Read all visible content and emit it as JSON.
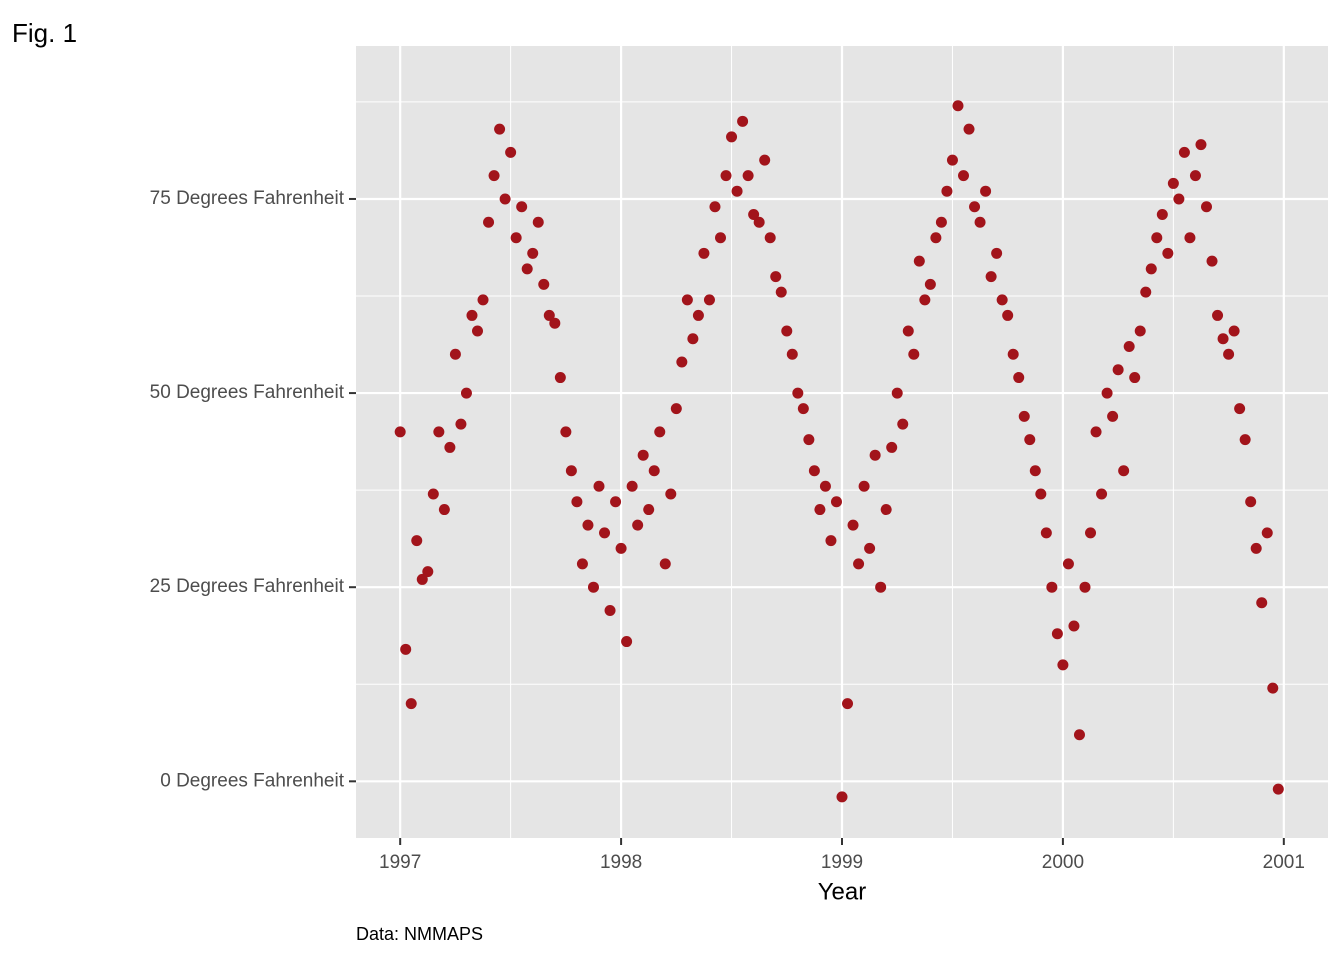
{
  "chart_data": {
    "type": "scatter",
    "tag": "Fig. 1",
    "xlabel": "Year",
    "caption": "Data: NMMAPS",
    "color": "#a2141b",
    "grid": true,
    "panel_color": "#e5e5e5",
    "xlim": [
      1996.8,
      2001.2
    ],
    "ylim": [
      -7.3,
      94.7
    ],
    "xticks": [
      1997,
      1998,
      1999,
      2000,
      2001
    ],
    "yticks": [
      {
        "value": 0,
        "label": "0 Degrees Fahrenheit"
      },
      {
        "value": 25,
        "label": "25 Degrees Fahrenheit"
      },
      {
        "value": 50,
        "label": "50 Degrees Fahrenheit"
      },
      {
        "value": 75,
        "label": "75 Degrees Fahrenheit"
      }
    ],
    "minor_xticks": [
      1997.5,
      1998.5,
      1999.5,
      2000.5
    ],
    "minor_yticks": [
      12.5,
      37.5,
      62.5,
      87.5
    ],
    "x": [
      1997,
      1997.025,
      1997.05,
      1997.075,
      1997.1,
      1997.125,
      1997.15,
      1997.175,
      1997.2,
      1997.225,
      1997.25,
      1997.275,
      1997.3,
      1997.325,
      1997.35,
      1997.375,
      1997.4,
      1997.425,
      1997.45,
      1997.475,
      1997.5,
      1997.525,
      1997.55,
      1997.575,
      1997.6,
      1997.625,
      1997.65,
      1997.675,
      1997.7,
      1997.725,
      1997.75,
      1997.775,
      1997.8,
      1997.825,
      1997.85,
      1997.875,
      1997.9,
      1997.925,
      1997.95,
      1997.975,
      1998,
      1998.025,
      1998.05,
      1998.075,
      1998.1,
      1998.125,
      1998.15,
      1998.175,
      1998.2,
      1998.225,
      1998.25,
      1998.275,
      1998.3,
      1998.325,
      1998.35,
      1998.375,
      1998.4,
      1998.425,
      1998.45,
      1998.475,
      1998.5,
      1998.525,
      1998.55,
      1998.575,
      1998.6,
      1998.625,
      1998.65,
      1998.675,
      1998.7,
      1998.725,
      1998.75,
      1998.775,
      1998.8,
      1998.825,
      1998.85,
      1998.875,
      1998.9,
      1998.925,
      1998.95,
      1998.975,
      1999,
      1999.025,
      1999.05,
      1999.075,
      1999.1,
      1999.125,
      1999.15,
      1999.175,
      1999.2,
      1999.225,
      1999.25,
      1999.275,
      1999.3,
      1999.325,
      1999.35,
      1999.375,
      1999.4,
      1999.425,
      1999.45,
      1999.475,
      1999.5,
      1999.525,
      1999.55,
      1999.575,
      1999.6,
      1999.625,
      1999.65,
      1999.675,
      1999.7,
      1999.725,
      1999.75,
      1999.775,
      1999.8,
      1999.825,
      1999.85,
      1999.875,
      1999.9,
      1999.925,
      1999.95,
      1999.975,
      2000,
      2000.025,
      2000.05,
      2000.075,
      2000.1,
      2000.125,
      2000.15,
      2000.175,
      2000.2,
      2000.225,
      2000.25,
      2000.275,
      2000.3,
      2000.325,
      2000.35,
      2000.375,
      2000.4,
      2000.425,
      2000.45,
      2000.475,
      2000.5,
      2000.525,
      2000.55,
      2000.575,
      2000.6,
      2000.625,
      2000.65,
      2000.675,
      2000.7,
      2000.725,
      2000.75,
      2000.775,
      2000.8,
      2000.825,
      2000.85,
      2000.875,
      2000.9,
      2000.925,
      2000.95,
      2000.975
    ],
    "values": [
      45,
      17,
      10,
      31,
      26,
      27,
      37,
      45,
      35,
      43,
      55,
      46,
      50,
      60,
      58,
      62,
      72,
      78,
      84,
      75,
      81,
      70,
      74,
      66,
      68,
      72,
      64,
      60,
      59,
      52,
      45,
      40,
      36,
      28,
      33,
      25,
      38,
      32,
      22,
      36,
      30,
      18,
      38,
      33,
      42,
      35,
      40,
      45,
      28,
      37,
      48,
      54,
      62,
      57,
      60,
      68,
      62,
      74,
      70,
      78,
      83,
      76,
      85,
      78,
      73,
      72,
      80,
      70,
      65,
      63,
      58,
      55,
      50,
      48,
      44,
      40,
      35,
      38,
      31,
      36,
      -2,
      10,
      33,
      28,
      38,
      30,
      42,
      25,
      35,
      43,
      50,
      46,
      58,
      55,
      67,
      62,
      64,
      70,
      72,
      76,
      80,
      87,
      78,
      84,
      74,
      72,
      76,
      65,
      68,
      62,
      60,
      55,
      52,
      47,
      44,
      40,
      37,
      32,
      25,
      19,
      15,
      28,
      20,
      6,
      25,
      32,
      45,
      37,
      50,
      47,
      53,
      40,
      56,
      52,
      58,
      63,
      66,
      70,
      73,
      68,
      77,
      75,
      81,
      70,
      78,
      82,
      74,
      67,
      60,
      57,
      55,
      58,
      48,
      44,
      36,
      30,
      23,
      32,
      12,
      -1
    ]
  }
}
